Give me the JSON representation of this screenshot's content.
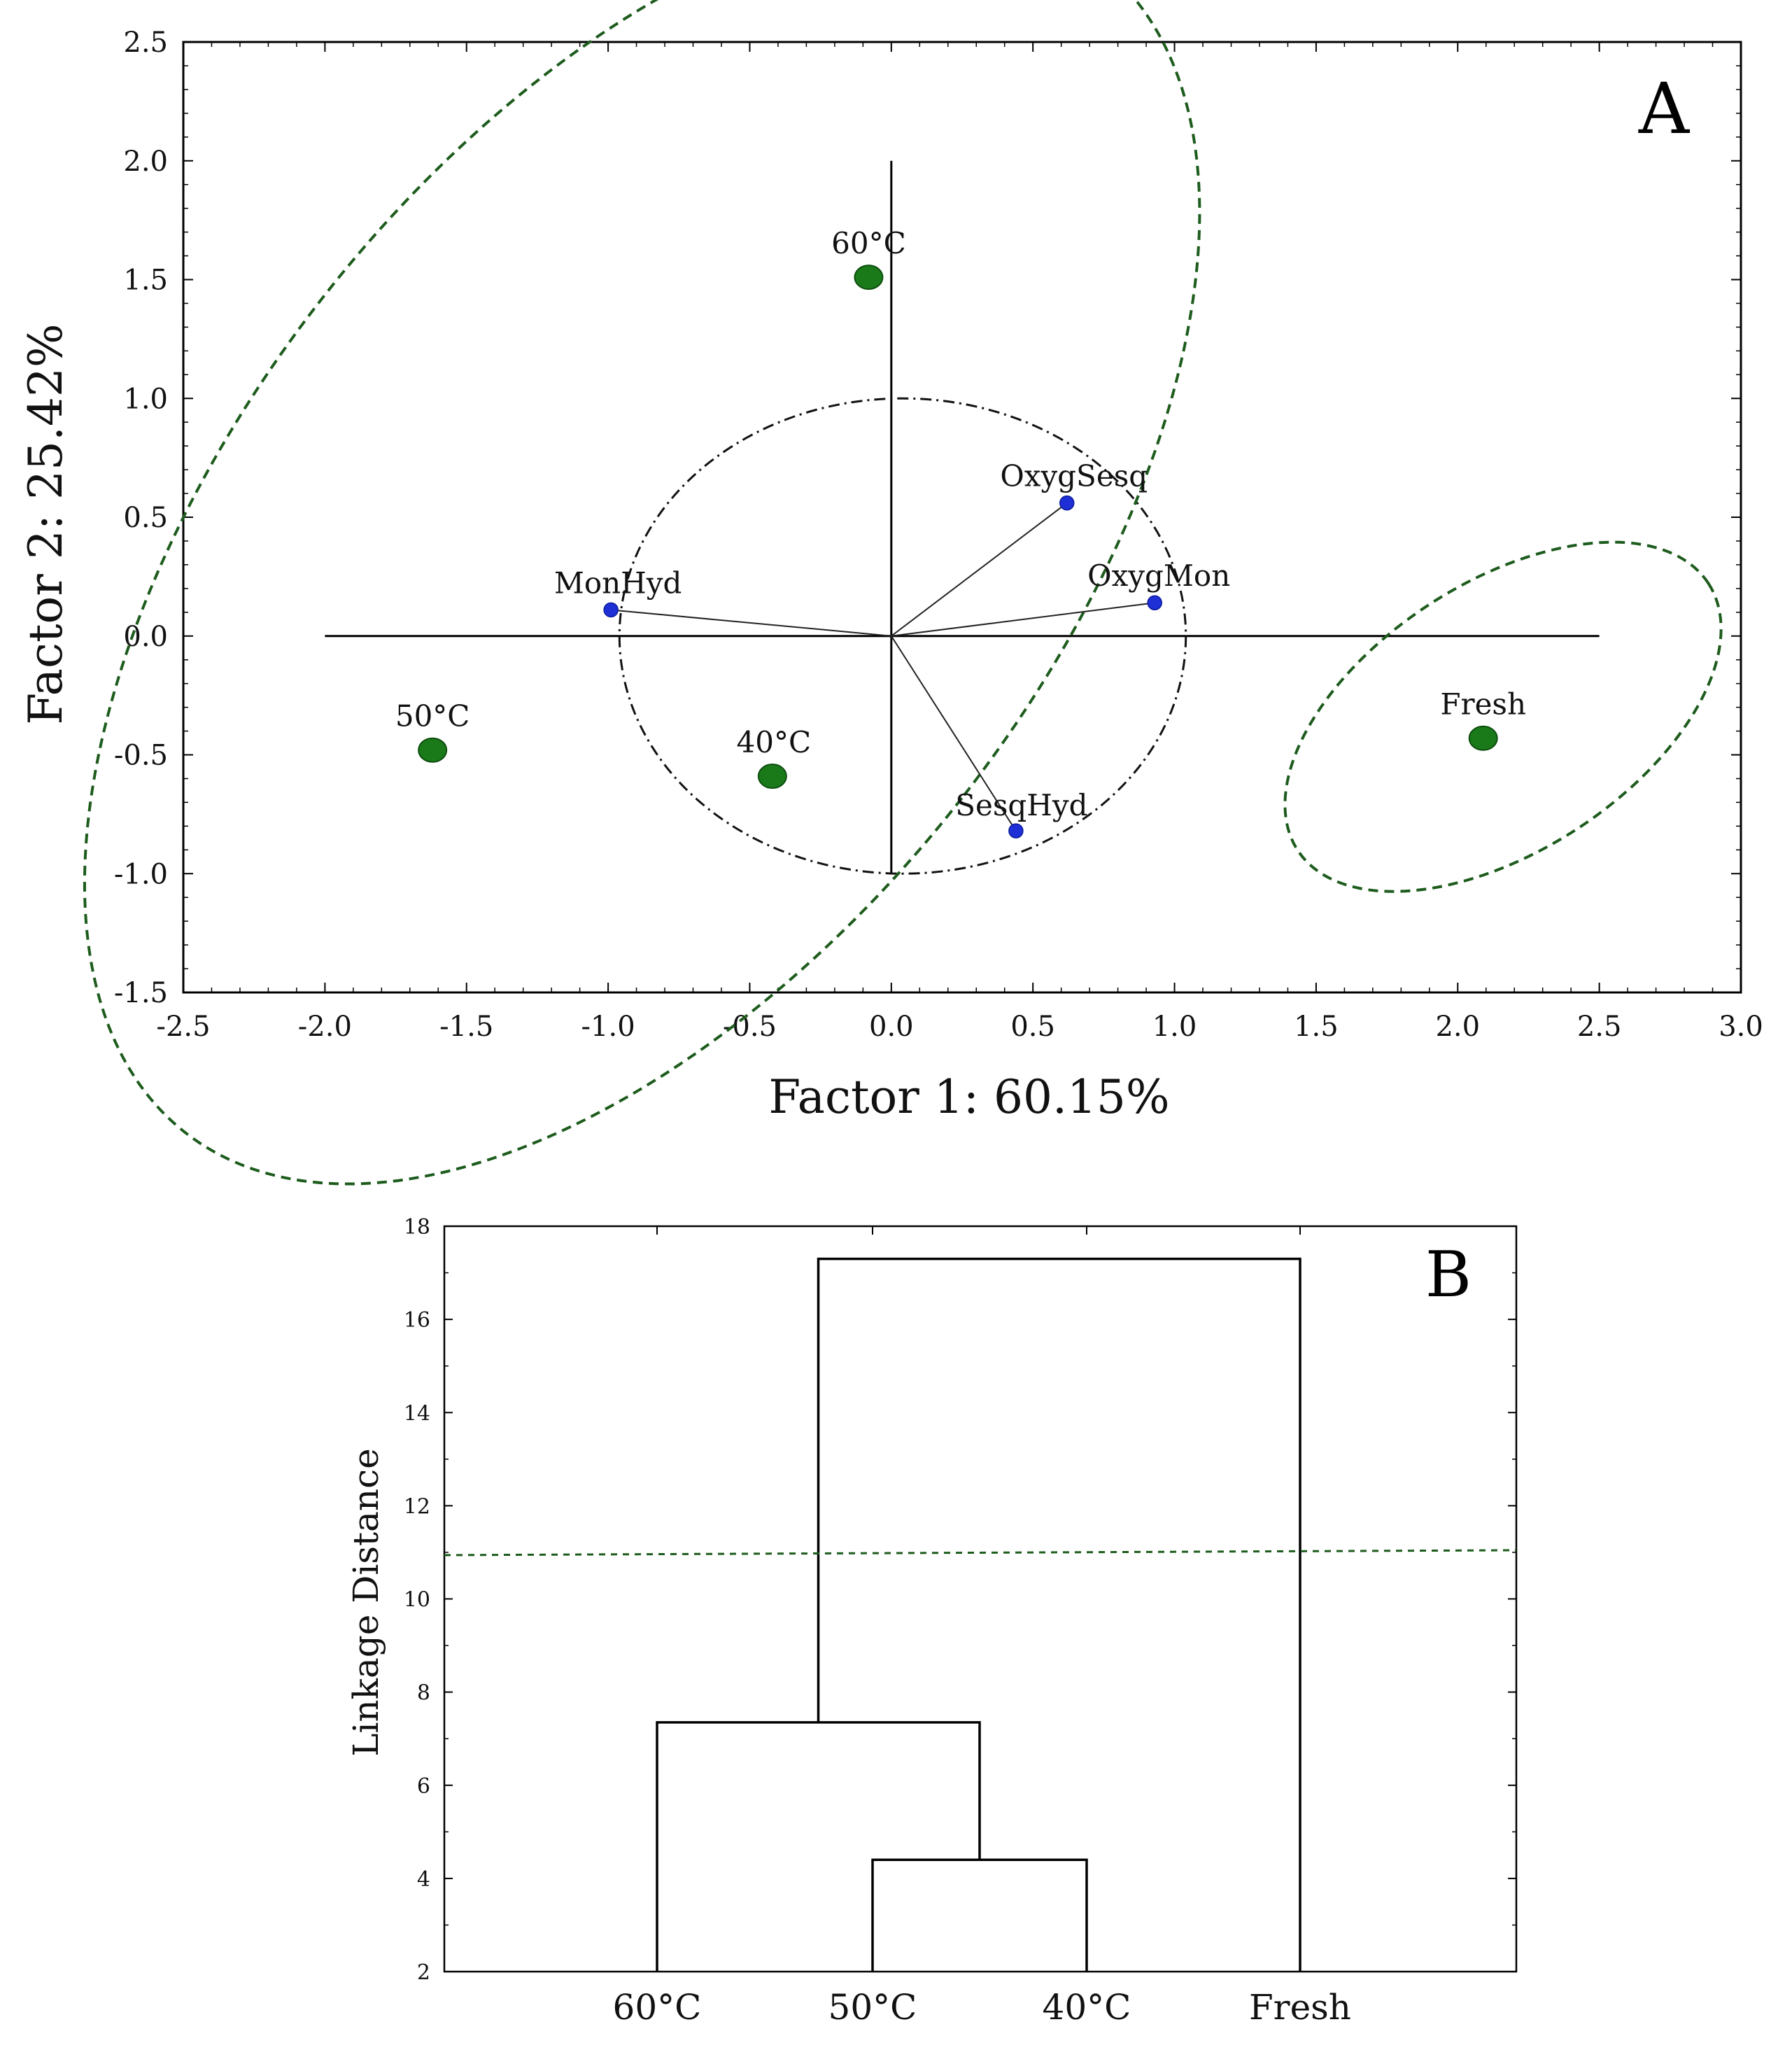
{
  "chart_data": [
    {
      "panel": "A",
      "type": "scatter",
      "xlabel": "Factor 1: 60.15%",
      "ylabel": "Factor 2: 25.42%",
      "xlim": [
        -2.5,
        3.0
      ],
      "ylim": [
        -1.5,
        2.5
      ],
      "xticks": [
        "-2.5",
        "-2.0",
        "-1.5",
        "-1.0",
        "-0.5",
        "0.0",
        "0.5",
        "1.0",
        "1.5",
        "2.0",
        "2.5",
        "3.0"
      ],
      "yticks": [
        "2.5",
        "2.0",
        "1.5",
        "1.0",
        "0.5",
        "0.0",
        "-0.5",
        "-1.0",
        "-1.5"
      ],
      "samples": [
        {
          "label": "60°C",
          "x": -0.08,
          "y": 1.51
        },
        {
          "label": "50°C",
          "x": -1.62,
          "y": -0.48
        },
        {
          "label": "40°C",
          "x": -0.42,
          "y": -0.59
        },
        {
          "label": "Fresh",
          "x": 2.09,
          "y": -0.43
        }
      ],
      "variables": [
        {
          "label": "OxygSesq",
          "x": 0.62,
          "y": 0.56
        },
        {
          "label": "MonHyd",
          "x": -0.99,
          "y": 0.11
        },
        {
          "label": "OxygMon",
          "x": 0.93,
          "y": 0.14
        },
        {
          "label": "SesqHyd",
          "x": 0.44,
          "y": -0.82
        }
      ],
      "correlation_circle_radius": 1.0,
      "colors": {
        "samples": "#1a7a1a",
        "variables": "#1f2fd6",
        "ellipses": "#1d5c1d"
      }
    },
    {
      "panel": "B",
      "type": "dendrogram",
      "ylabel": "Linkage Distance",
      "ylim": [
        2,
        18
      ],
      "yticks": [
        "2",
        "4",
        "6",
        "8",
        "10",
        "12",
        "14",
        "16",
        "18"
      ],
      "leaves": [
        "60°C",
        "50°C",
        "40°C",
        "Fresh"
      ],
      "merges": [
        {
          "left": "50°C",
          "right": "40°C",
          "distance": 4.4
        },
        {
          "left": "60°C",
          "right": "50°C+40°C",
          "distance": 7.35
        },
        {
          "left": "60°C+50°C+40°C",
          "right": "Fresh",
          "distance": 17.3
        }
      ],
      "cut_line": 11.0,
      "colors": {
        "cut_line": "#1d5c1d"
      }
    }
  ],
  "panels": {
    "a_letter": "A",
    "b_letter": "B"
  }
}
